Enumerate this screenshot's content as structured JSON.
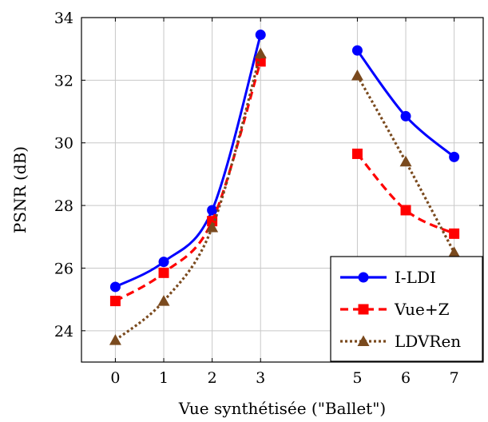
{
  "chart_data": {
    "type": "line",
    "xlabel": "Vue synthétisée (\"Ballet\")",
    "ylabel": "PSNR (dB)",
    "xlim": [
      -0.7,
      7.6
    ],
    "ylim": [
      23.0,
      34.0
    ],
    "x_ticks": [
      "0",
      "1",
      "2",
      "3",
      "5",
      "6",
      "7"
    ],
    "y_ticks": [
      "24",
      "26",
      "28",
      "30",
      "32",
      "34"
    ],
    "grid": true,
    "legend_position": "bottom-right",
    "series": [
      {
        "name": "I-LDI",
        "color": "#0000ff",
        "line_style": "solid",
        "marker": "circle",
        "segments": [
          {
            "x": [
              0,
              1,
              2,
              3
            ],
            "y": [
              25.4,
              26.2,
              27.85,
              33.45
            ]
          },
          {
            "x": [
              5,
              6,
              7
            ],
            "y": [
              32.95,
              30.85,
              29.55
            ]
          }
        ]
      },
      {
        "name": "Vue+Z",
        "color": "#ff0000",
        "line_style": "dashed",
        "marker": "square",
        "segments": [
          {
            "x": [
              0,
              1,
              2,
              3
            ],
            "y": [
              24.95,
              25.85,
              27.5,
              32.6
            ]
          },
          {
            "x": [
              5,
              6,
              7
            ],
            "y": [
              29.65,
              27.85,
              27.1
            ]
          }
        ]
      },
      {
        "name": "LDVRen",
        "color": "#7a4a1e",
        "line_style": "dotted",
        "marker": "triangle",
        "segments": [
          {
            "x": [
              0,
              1,
              2,
              3
            ],
            "y": [
              23.7,
              24.95,
              27.3,
              32.85
            ]
          },
          {
            "x": [
              5,
              6,
              7
            ],
            "y": [
              32.15,
              29.4,
              26.5
            ]
          }
        ]
      }
    ]
  }
}
